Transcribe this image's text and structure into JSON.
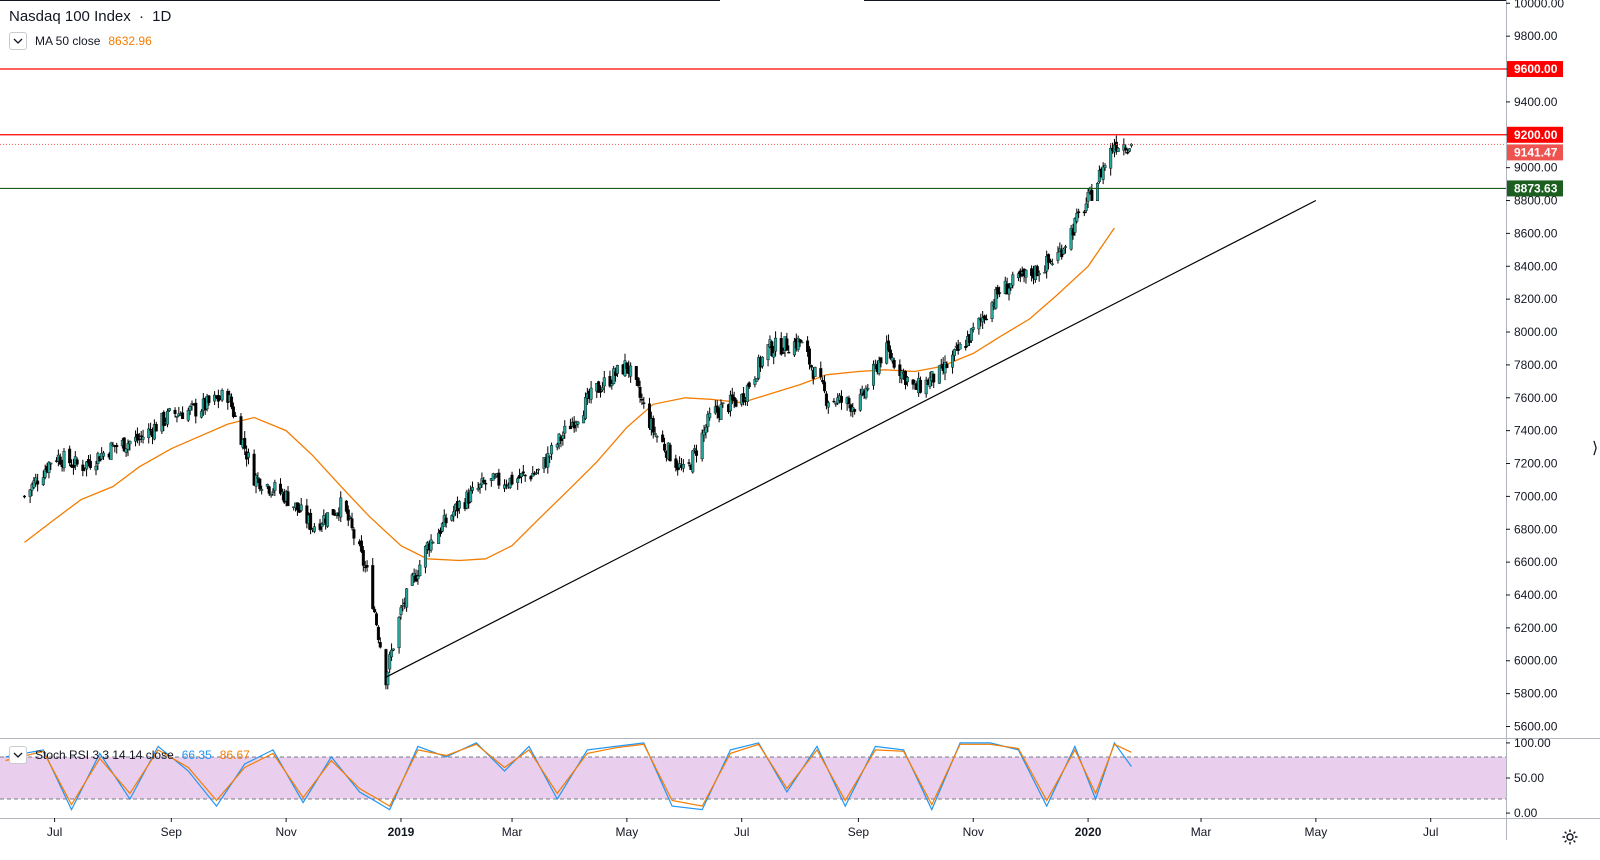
{
  "header": {
    "symbol_name": "Nasdaq 100 Index",
    "separator": "·",
    "interval": "1D"
  },
  "legend_ma": {
    "label": "MA 50 close",
    "value": "8632.96",
    "value_color": "#f57c00"
  },
  "legend_stoch": {
    "label": "Stoch RSI 3 3 14 14 close",
    "k_value": "66.35",
    "d_value": "86.67",
    "k_color": "#2196f3",
    "d_color": "#f57c00"
  },
  "price_axis": {
    "ticks": [
      "10000.00",
      "9800.00",
      "9600.00",
      "9400.00",
      "9200.00",
      "9000.00",
      "8800.00",
      "8600.00",
      "8400.00",
      "8200.00",
      "8000.00",
      "7800.00",
      "7600.00",
      "7400.00",
      "7200.00",
      "7000.00",
      "6800.00",
      "6600.00",
      "6400.00",
      "6200.00",
      "6000.00",
      "5800.00",
      "5600.00"
    ],
    "tick_values": [
      10000,
      9800,
      9600,
      9400,
      9200,
      9000,
      8800,
      8600,
      8400,
      8200,
      8000,
      7800,
      7600,
      7400,
      7200,
      7000,
      6800,
      6600,
      6400,
      6200,
      6000,
      5800,
      5600
    ]
  },
  "osc_axis": {
    "ticks": [
      "100.00",
      "50.00",
      "0.00"
    ],
    "tick_values": [
      100,
      50,
      0
    ]
  },
  "time_axis": {
    "labels": [
      "Jul",
      "Sep",
      "Nov",
      "2019",
      "Mar",
      "May",
      "Jul",
      "Sep",
      "Nov",
      "2020",
      "Mar",
      "May",
      "Jul"
    ],
    "bold": [
      false,
      false,
      false,
      true,
      false,
      false,
      false,
      false,
      false,
      true,
      false,
      false,
      false
    ],
    "dates": [
      "2018-07-01",
      "2018-09-01",
      "2018-11-01",
      "2019-01-01",
      "2019-03-01",
      "2019-05-01",
      "2019-07-01",
      "2019-09-01",
      "2019-11-01",
      "2020-01-01",
      "2020-03-01",
      "2020-05-01",
      "2020-07-01"
    ]
  },
  "horizontal_lines": [
    {
      "price": 9600,
      "label": "9600.00",
      "color": "#ff0000"
    },
    {
      "price": 9200,
      "label": "9200.00",
      "color": "#ff0000"
    },
    {
      "price": 8873.63,
      "label": "8873.63",
      "color": "#1b5e20"
    }
  ],
  "last_price": {
    "price": 9141.47,
    "label": "9141.47",
    "color": "#ef5350"
  },
  "colors": {
    "up": "#26a69a",
    "down": "#ef5350",
    "candle_body_up": "#26a69a",
    "ma": "#f57c00",
    "stoch_k": "#2196f3",
    "stoch_d": "#f57c00",
    "stoch_band": "#e1bee7",
    "trendline": "#000000"
  },
  "chart_data": [
    {
      "type": "line",
      "chart_kind": "candlestick_with_ma",
      "series": [
        {
          "name": "MA 50 close",
          "x": [
            "2018-06-15",
            "2018-07-01",
            "2018-07-15",
            "2018-08-01",
            "2018-08-15",
            "2018-09-01",
            "2018-09-15",
            "2018-10-01",
            "2018-10-15",
            "2018-11-01",
            "2018-11-15",
            "2018-12-01",
            "2018-12-15",
            "2019-01-01",
            "2019-01-15",
            "2019-02-01",
            "2019-02-15",
            "2019-03-01",
            "2019-03-15",
            "2019-04-01",
            "2019-04-15",
            "2019-05-01",
            "2019-05-15",
            "2019-06-01",
            "2019-06-15",
            "2019-07-01",
            "2019-07-15",
            "2019-08-01",
            "2019-08-15",
            "2019-09-01",
            "2019-09-15",
            "2019-10-01",
            "2019-10-15",
            "2019-11-01",
            "2019-11-15",
            "2019-12-01",
            "2019-12-15",
            "2020-01-01",
            "2020-01-15"
          ],
          "values": [
            6720,
            6860,
            6980,
            7060,
            7180,
            7290,
            7360,
            7440,
            7480,
            7400,
            7250,
            7050,
            6880,
            6700,
            6620,
            6610,
            6620,
            6700,
            6860,
            7050,
            7210,
            7420,
            7560,
            7600,
            7590,
            7570,
            7620,
            7680,
            7740,
            7760,
            7770,
            7760,
            7790,
            7870,
            7970,
            8080,
            8220,
            8400,
            8632.96
          ]
        },
        {
          "name": "Close (approx.)",
          "x": [
            "2018-06-15",
            "2018-07-01",
            "2018-07-15",
            "2018-08-01",
            "2018-08-15",
            "2018-09-01",
            "2018-09-15",
            "2018-10-01",
            "2018-10-15",
            "2018-11-01",
            "2018-11-15",
            "2018-12-01",
            "2018-12-15",
            "2018-12-24",
            "2019-01-01",
            "2019-01-15",
            "2019-02-01",
            "2019-02-15",
            "2019-03-01",
            "2019-03-15",
            "2019-04-01",
            "2019-04-15",
            "2019-05-01",
            "2019-05-15",
            "2019-06-01",
            "2019-06-15",
            "2019-07-01",
            "2019-07-15",
            "2019-08-01",
            "2019-08-15",
            "2019-09-01",
            "2019-09-15",
            "2019-10-01",
            "2019-10-15",
            "2019-11-01",
            "2019-11-15",
            "2019-12-01",
            "2019-12-15",
            "2020-01-01",
            "2020-01-15",
            "2020-01-24"
          ],
          "values": [
            7000,
            7250,
            7180,
            7300,
            7350,
            7500,
            7530,
            7620,
            7120,
            7000,
            6820,
            6950,
            6500,
            5900,
            6300,
            6700,
            6950,
            7080,
            7100,
            7150,
            7440,
            7650,
            7800,
            7400,
            7130,
            7500,
            7600,
            7900,
            7940,
            7600,
            7550,
            7900,
            7650,
            7750,
            8000,
            8250,
            8350,
            8450,
            8800,
            9150,
            9141.47
          ]
        }
      ],
      "trendline": {
        "x": [
          "2018-12-24",
          "2020-05-01"
        ],
        "y": [
          5900,
          8800
        ]
      },
      "ylim": [
        5530,
        10020
      ],
      "xlim": [
        "2018-06-02",
        "2020-08-10"
      ],
      "grid": false,
      "title": "Nasdaq 100 Index · 1D",
      "xlabel": "",
      "ylabel": ""
    },
    {
      "type": "line",
      "chart_kind": "oscillator",
      "series": [
        {
          "name": "K",
          "x": [
            "2018-06-05",
            "2018-06-25",
            "2018-07-10",
            "2018-07-25",
            "2018-08-10",
            "2018-08-25",
            "2018-09-10",
            "2018-09-25",
            "2018-10-10",
            "2018-10-25",
            "2018-11-10",
            "2018-11-25",
            "2018-12-10",
            "2018-12-26",
            "2019-01-10",
            "2019-01-25",
            "2019-02-10",
            "2019-02-25",
            "2019-03-10",
            "2019-03-25",
            "2019-04-10",
            "2019-04-25",
            "2019-05-10",
            "2019-05-25",
            "2019-06-10",
            "2019-06-25",
            "2019-07-10",
            "2019-07-25",
            "2019-08-10",
            "2019-08-25",
            "2019-09-10",
            "2019-09-25",
            "2019-10-10",
            "2019-10-25",
            "2019-11-10",
            "2019-11-25",
            "2019-12-10",
            "2019-12-25",
            "2020-01-05",
            "2020-01-15",
            "2020-01-24"
          ],
          "values": [
            80,
            90,
            5,
            85,
            20,
            95,
            60,
            10,
            70,
            90,
            15,
            80,
            30,
            5,
            95,
            80,
            100,
            60,
            95,
            20,
            90,
            95,
            100,
            10,
            5,
            90,
            100,
            30,
            95,
            10,
            95,
            90,
            5,
            100,
            100,
            90,
            10,
            95,
            20,
            100,
            66.35
          ]
        },
        {
          "name": "D",
          "x": [
            "2018-06-05",
            "2018-06-25",
            "2018-07-10",
            "2018-07-25",
            "2018-08-10",
            "2018-08-25",
            "2018-09-10",
            "2018-09-25",
            "2018-10-10",
            "2018-10-25",
            "2018-11-10",
            "2018-11-25",
            "2018-12-10",
            "2018-12-26",
            "2019-01-10",
            "2019-01-25",
            "2019-02-10",
            "2019-02-25",
            "2019-03-10",
            "2019-03-25",
            "2019-04-10",
            "2019-04-25",
            "2019-05-10",
            "2019-05-25",
            "2019-06-10",
            "2019-06-25",
            "2019-07-10",
            "2019-07-25",
            "2019-08-10",
            "2019-08-25",
            "2019-09-10",
            "2019-09-25",
            "2019-10-10",
            "2019-10-25",
            "2019-11-10",
            "2019-11-25",
            "2019-12-10",
            "2019-12-25",
            "2020-01-05",
            "2020-01-15",
            "2020-01-24"
          ],
          "values": [
            75,
            88,
            12,
            78,
            28,
            90,
            65,
            18,
            65,
            85,
            22,
            75,
            35,
            10,
            90,
            82,
            98,
            65,
            90,
            28,
            85,
            93,
            98,
            18,
            10,
            85,
            98,
            35,
            90,
            18,
            90,
            88,
            12,
            98,
            98,
            92,
            18,
            90,
            28,
            98,
            86.67
          ]
        }
      ],
      "bands": [
        20,
        80
      ],
      "ylim": [
        -7,
        107
      ],
      "xlabel": "",
      "ylabel": ""
    }
  ]
}
